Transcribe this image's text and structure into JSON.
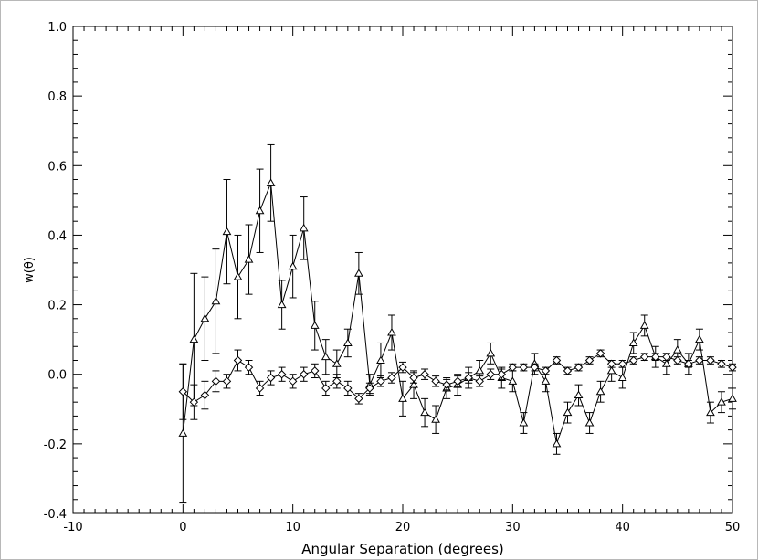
{
  "chart_data": {
    "type": "line",
    "title": "",
    "xlabel": "Angular Separation (degrees)",
    "ylabel": "w(θ)",
    "xlim": [
      -10,
      50
    ],
    "ylim": [
      -0.4,
      1.0
    ],
    "x_ticks": [
      "-10",
      "0",
      "10",
      "20",
      "30",
      "40",
      "50"
    ],
    "y_ticks": [
      "-0.4",
      "-0.2",
      "0.0",
      "0.2",
      "0.4",
      "0.6",
      "0.8",
      "1.0"
    ],
    "grid": false,
    "series": [
      {
        "marker": "triangle",
        "x": [
          0,
          1,
          2,
          3,
          4,
          5,
          6,
          7,
          8,
          9,
          10,
          11,
          12,
          13,
          14,
          15,
          16,
          17,
          18,
          19,
          20,
          21,
          22,
          23,
          24,
          25,
          26,
          27,
          28,
          29,
          30,
          31,
          32,
          33,
          34,
          35,
          36,
          37,
          38,
          39,
          40,
          41,
          42,
          43,
          44,
          45,
          46,
          47,
          48,
          49,
          50
        ],
        "y": [
          -0.17,
          0.1,
          0.16,
          0.21,
          0.41,
          0.28,
          0.33,
          0.47,
          0.55,
          0.2,
          0.31,
          0.42,
          0.14,
          0.05,
          0.03,
          0.09,
          0.29,
          -0.03,
          0.04,
          0.12,
          -0.07,
          -0.03,
          -0.11,
          -0.13,
          -0.04,
          -0.03,
          -0.01,
          0.01,
          0.06,
          -0.01,
          -0.02,
          -0.14,
          0.03,
          -0.02,
          -0.2,
          -0.11,
          -0.06,
          -0.14,
          -0.05,
          0.01,
          -0.01,
          0.09,
          0.14,
          0.05,
          0.03,
          0.07,
          0.03,
          0.1,
          -0.11,
          -0.08,
          -0.07
        ],
        "error": [
          0.2,
          0.19,
          0.12,
          0.15,
          0.15,
          0.12,
          0.1,
          0.12,
          0.11,
          0.07,
          0.09,
          0.09,
          0.07,
          0.05,
          0.04,
          0.04,
          0.06,
          0.03,
          0.05,
          0.05,
          0.05,
          0.04,
          0.04,
          0.04,
          0.03,
          0.03,
          0.03,
          0.03,
          0.03,
          0.03,
          0.03,
          0.03,
          0.03,
          0.03,
          0.03,
          0.03,
          0.03,
          0.03,
          0.03,
          0.03,
          0.03,
          0.03,
          0.03,
          0.03,
          0.03,
          0.03,
          0.03,
          0.03,
          0.03,
          0.03,
          0.03
        ]
      },
      {
        "marker": "diamond",
        "x": [
          0,
          1,
          2,
          3,
          4,
          5,
          6,
          7,
          8,
          9,
          10,
          11,
          12,
          13,
          14,
          15,
          16,
          17,
          18,
          19,
          20,
          21,
          22,
          23,
          24,
          25,
          26,
          27,
          28,
          29,
          30,
          31,
          32,
          33,
          34,
          35,
          36,
          37,
          38,
          39,
          40,
          41,
          42,
          43,
          44,
          45,
          46,
          47,
          48,
          49,
          50
        ],
        "y": [
          -0.05,
          -0.08,
          -0.06,
          -0.02,
          -0.02,
          0.04,
          0.02,
          -0.04,
          -0.01,
          0.0,
          -0.02,
          0.0,
          0.01,
          -0.04,
          -0.02,
          -0.04,
          -0.07,
          -0.04,
          -0.02,
          -0.01,
          0.02,
          -0.01,
          0.0,
          -0.02,
          -0.03,
          -0.02,
          -0.01,
          -0.02,
          0.0,
          0.0,
          0.02,
          0.02,
          0.02,
          0.01,
          0.04,
          0.01,
          0.02,
          0.04,
          0.06,
          0.03,
          0.03,
          0.04,
          0.05,
          0.05,
          0.05,
          0.04,
          0.03,
          0.04,
          0.04,
          0.03,
          0.02
        ],
        "error": [
          0.08,
          0.05,
          0.04,
          0.03,
          0.02,
          0.03,
          0.02,
          0.02,
          0.02,
          0.02,
          0.02,
          0.02,
          0.02,
          0.02,
          0.02,
          0.02,
          0.015,
          0.015,
          0.015,
          0.015,
          0.015,
          0.015,
          0.015,
          0.015,
          0.015,
          0.015,
          0.015,
          0.015,
          0.015,
          0.015,
          0.01,
          0.01,
          0.01,
          0.01,
          0.01,
          0.01,
          0.01,
          0.01,
          0.01,
          0.01,
          0.01,
          0.01,
          0.01,
          0.01,
          0.01,
          0.01,
          0.01,
          0.01,
          0.01,
          0.01,
          0.01
        ]
      }
    ]
  }
}
